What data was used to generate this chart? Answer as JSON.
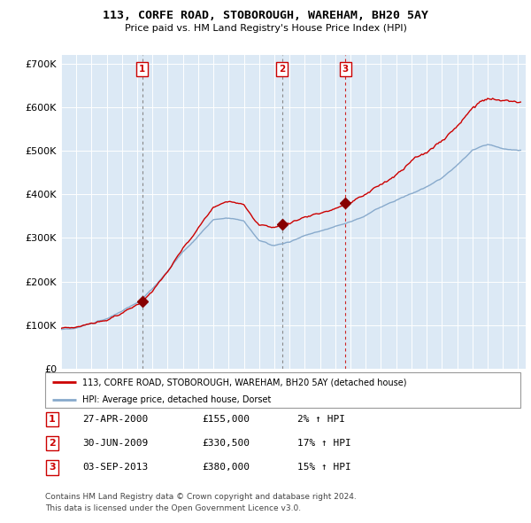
{
  "title": "113, CORFE ROAD, STOBOROUGH, WAREHAM, BH20 5AY",
  "subtitle": "Price paid vs. HM Land Registry's House Price Index (HPI)",
  "ylim": [
    0,
    720000
  ],
  "yticks": [
    0,
    100000,
    200000,
    300000,
    400000,
    500000,
    600000,
    700000
  ],
  "ytick_labels": [
    "£0",
    "£100K",
    "£200K",
    "£300K",
    "£400K",
    "£500K",
    "£600K",
    "£700K"
  ],
  "plot_bg_color": "#dce9f5",
  "grid_color": "#ffffff",
  "red_line_color": "#cc0000",
  "blue_line_color": "#88aacc",
  "sale_marker_color": "#880000",
  "sales": [
    {
      "label": "1",
      "date_x": 2000.32,
      "price": 155000,
      "date_str": "27-APR-2000",
      "price_str": "£155,000",
      "hpi_str": "2% ↑ HPI"
    },
    {
      "label": "2",
      "date_x": 2009.5,
      "price": 330500,
      "date_str": "30-JUN-2009",
      "price_str": "£330,500",
      "hpi_str": "17% ↑ HPI"
    },
    {
      "label": "3",
      "date_x": 2013.67,
      "price": 380000,
      "date_str": "03-SEP-2013",
      "price_str": "£380,000",
      "hpi_str": "15% ↑ HPI"
    }
  ],
  "legend_red_label": "113, CORFE ROAD, STOBOROUGH, WAREHAM, BH20 5AY (detached house)",
  "legend_blue_label": "HPI: Average price, detached house, Dorset",
  "footer_line1": "Contains HM Land Registry data © Crown copyright and database right 2024.",
  "footer_line2": "This data is licensed under the Open Government Licence v3.0.",
  "xmin": 1995.0,
  "xmax": 2025.5
}
